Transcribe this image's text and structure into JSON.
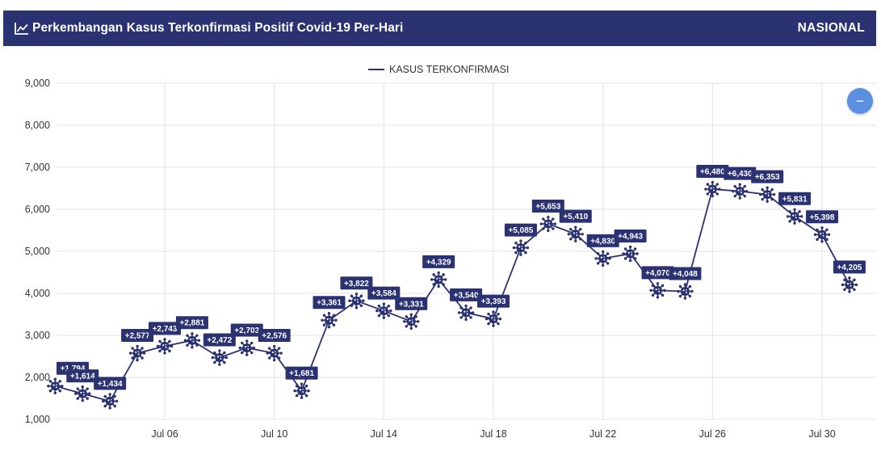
{
  "header": {
    "title": "Perkembangan Kasus Terkonfirmasi Positif Covid-19 Per-Hari",
    "scope": "NASIONAL",
    "icon": "line-chart-icon"
  },
  "zoom_button": {
    "icon": "minus-icon",
    "label": "−"
  },
  "colors": {
    "header_bg": "#2b3272",
    "series": "#2b3272",
    "zoom_button": "#5b8fe0",
    "grid": "#e3e3e3"
  },
  "chart_data": {
    "type": "line",
    "title": "",
    "legend": {
      "entries": [
        "KASUS TERKONFIRMASI"
      ],
      "placement": "top-center"
    },
    "xlabel": "",
    "ylabel": "",
    "ylim": [
      1000,
      9000
    ],
    "yticks": [
      1000,
      2000,
      3000,
      4000,
      5000,
      6000,
      7000,
      8000,
      9000
    ],
    "ytick_labels": [
      "1,000",
      "2,000",
      "3,000",
      "4,000",
      "5,000",
      "6,000",
      "7,000",
      "8,000",
      "9,000"
    ],
    "xticks": [
      {
        "day": 6,
        "label": "Jul 06"
      },
      {
        "day": 10,
        "label": "Jul 10"
      },
      {
        "day": 14,
        "label": "Jul 14"
      },
      {
        "day": 18,
        "label": "Jul 18"
      },
      {
        "day": 22,
        "label": "Jul 22"
      },
      {
        "day": 26,
        "label": "Jul 26"
      },
      {
        "day": 30,
        "label": "Jul 30"
      }
    ],
    "grid": true,
    "series": [
      {
        "name": "KASUS TERKONFIRMASI",
        "color": "#2b3272",
        "marker": "virus-icon",
        "points": [
          {
            "day": 2,
            "value": 1794,
            "label": "+1,794"
          },
          {
            "day": 3,
            "value": 1614,
            "label": "+1,614"
          },
          {
            "day": 4,
            "value": 1434,
            "label": "+1,434"
          },
          {
            "day": 5,
            "value": 2577,
            "label": "+2,577"
          },
          {
            "day": 6,
            "value": 2743,
            "label": "+2,743"
          },
          {
            "day": 7,
            "value": 2881,
            "label": "+2,881"
          },
          {
            "day": 8,
            "value": 2472,
            "label": "+2,472"
          },
          {
            "day": 9,
            "value": 2703,
            "label": "+2,703"
          },
          {
            "day": 10,
            "value": 2576,
            "label": "+2,576"
          },
          {
            "day": 11,
            "value": 1681,
            "label": "+1,681"
          },
          {
            "day": 12,
            "value": 3361,
            "label": "+3,361"
          },
          {
            "day": 13,
            "value": 3822,
            "label": "+3,822"
          },
          {
            "day": 14,
            "value": 3584,
            "label": "+3,584"
          },
          {
            "day": 15,
            "value": 3331,
            "label": "+3,331"
          },
          {
            "day": 16,
            "value": 4329,
            "label": "+4,329"
          },
          {
            "day": 17,
            "value": 3540,
            "label": "+3,540"
          },
          {
            "day": 18,
            "value": 3393,
            "label": "+3,393"
          },
          {
            "day": 19,
            "value": 5085,
            "label": "+5,085"
          },
          {
            "day": 20,
            "value": 5653,
            "label": "+5,653"
          },
          {
            "day": 21,
            "value": 5410,
            "label": "+5,410"
          },
          {
            "day": 22,
            "value": 4830,
            "label": "+4,830"
          },
          {
            "day": 23,
            "value": 4943,
            "label": "+4,943"
          },
          {
            "day": 24,
            "value": 4070,
            "label": "+4,070"
          },
          {
            "day": 25,
            "value": 4048,
            "label": "+4,048"
          },
          {
            "day": 26,
            "value": 6480,
            "label": "+6,480"
          },
          {
            "day": 27,
            "value": 6430,
            "label": "+6,430"
          },
          {
            "day": 28,
            "value": 6353,
            "label": "+6,353"
          },
          {
            "day": 29,
            "value": 5831,
            "label": "+5,831"
          },
          {
            "day": 30,
            "value": 5398,
            "label": "+5,398"
          },
          {
            "day": 31,
            "value": 4205,
            "label": "+4,205"
          }
        ]
      }
    ]
  }
}
